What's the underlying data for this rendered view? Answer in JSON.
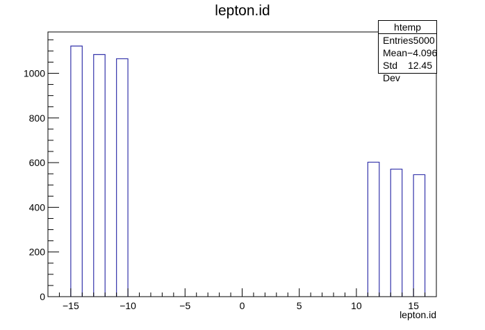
{
  "chart_data": {
    "type": "bar",
    "title": "lepton.id",
    "xlabel": "lepton.id",
    "ylabel": "",
    "xlim": [
      -17,
      17
    ],
    "ylim": [
      0,
      1185
    ],
    "xticks": [
      -15,
      -10,
      -5,
      0,
      5,
      10,
      15
    ],
    "xtick_labels": [
      "−15",
      "−10",
      "−5",
      "0",
      "5",
      "10",
      "15"
    ],
    "yticks": [
      0,
      200,
      400,
      600,
      800,
      1000
    ],
    "ytick_labels": [
      "0",
      "200",
      "400",
      "600",
      "800",
      "1000"
    ],
    "bins": [
      {
        "x_low": -15,
        "x_high": -14,
        "value": 1122
      },
      {
        "x_low": -13,
        "x_high": -12,
        "value": 1084
      },
      {
        "x_low": -11,
        "x_high": -10,
        "value": 1065
      },
      {
        "x_low": 11,
        "x_high": 12,
        "value": 602
      },
      {
        "x_low": 13,
        "x_high": 14,
        "value": 571
      },
      {
        "x_low": 15,
        "x_high": 16,
        "value": 546
      }
    ],
    "line_color": "#3333aa",
    "grid": false
  },
  "stats_box": {
    "name": "htemp",
    "rows": [
      {
        "label": "Entries",
        "value": "5000"
      },
      {
        "label": "Mean",
        "value": "−4.096"
      },
      {
        "label": "Std Dev",
        "value": "12.45"
      }
    ]
  }
}
